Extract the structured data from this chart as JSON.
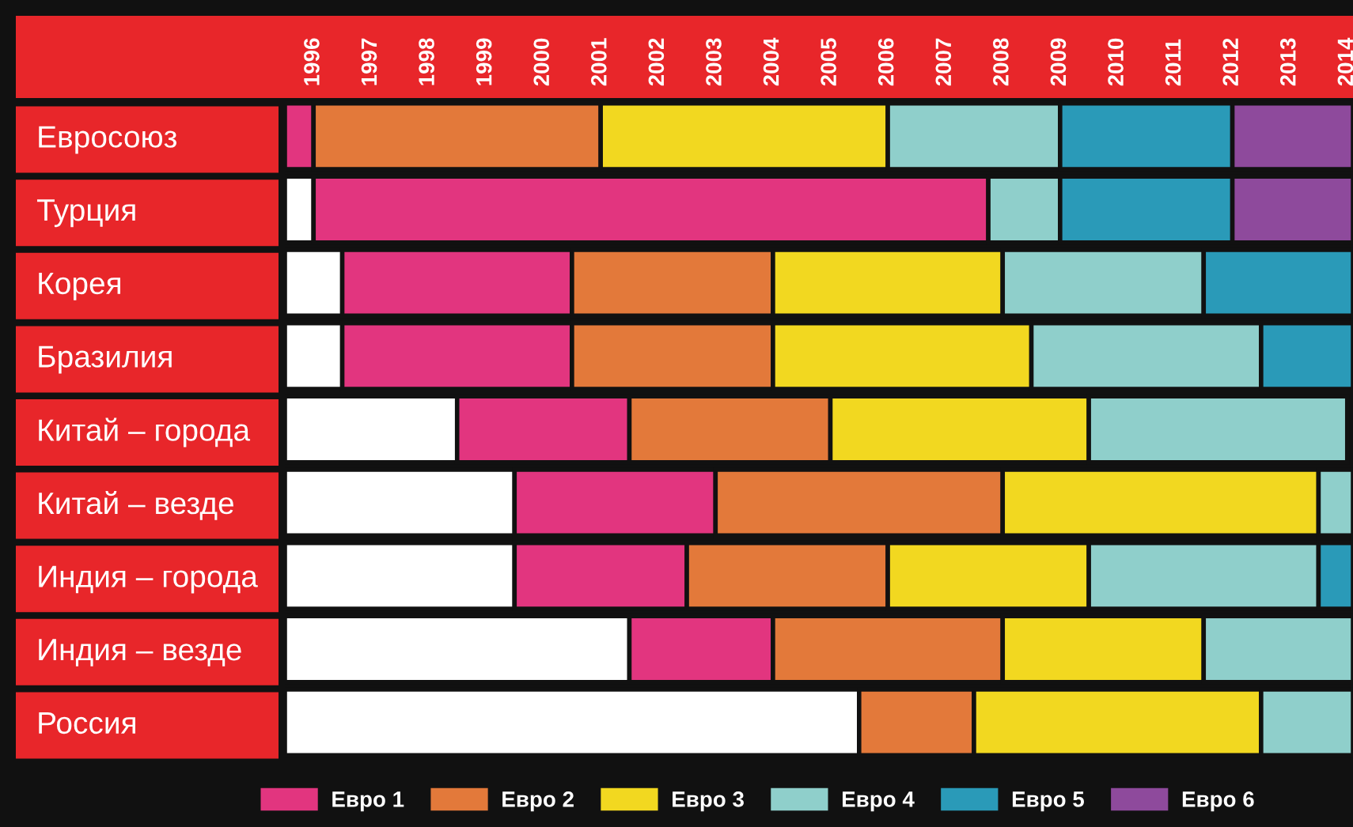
{
  "chart_data": {
    "type": "bar",
    "orientation": "horizontal",
    "categories": [
      "Евросоюз",
      "Турция",
      "Корея",
      "Бразилия",
      "Китай – города",
      "Китай – везде",
      "Индия – города",
      "Индия – везде",
      "Россия"
    ],
    "series": [
      {
        "color": "#ffffff",
        "base": [
          null,
          1996,
          1996,
          1996,
          1996,
          1996,
          1996,
          1996,
          1996
        ],
        "values": [
          null,
          0.5,
          1,
          1,
          3,
          4,
          4,
          6,
          10
        ]
      },
      {
        "name": "Евро 1",
        "color": "#e2357f",
        "base": [
          1996,
          1996.5,
          1997,
          1997,
          1999,
          2000,
          2000,
          2002,
          null
        ],
        "values": [
          0.5,
          11.75,
          4,
          4,
          3,
          3.5,
          3,
          2.5,
          null
        ]
      },
      {
        "name": "Евро 2",
        "color": "#e3793a",
        "base": [
          1996.5,
          null,
          2001,
          2001,
          2002,
          2003.5,
          2003,
          2004.5,
          2006
        ],
        "values": [
          5,
          null,
          3.5,
          3.5,
          3.5,
          5,
          3.5,
          4,
          2
        ]
      },
      {
        "name": "Евро 3",
        "color": "#f2d820",
        "base": [
          2001.5,
          null,
          2004.5,
          2004.5,
          2005.5,
          2008.5,
          2006.5,
          2008.5,
          2008
        ],
        "values": [
          5,
          null,
          4,
          4.5,
          4.5,
          5.5,
          3.5,
          3.5,
          5
        ]
      },
      {
        "name": "Евро 4",
        "color": "#8fcfcb",
        "base": [
          2006.5,
          2008.25,
          2008.5,
          2009,
          2010,
          2014,
          2010,
          2012,
          2013
        ],
        "values": [
          3,
          1.25,
          3.5,
          4,
          4.5,
          0.6,
          4,
          2.6,
          1.6
        ]
      },
      {
        "name": "Евро 5",
        "color": "#2a9ab8",
        "base": [
          2009.5,
          2009.5,
          2012,
          2013,
          null,
          null,
          2014,
          null,
          null
        ],
        "values": [
          3,
          3,
          2.6,
          1.6,
          null,
          null,
          0.6,
          null,
          null
        ]
      },
      {
        "name": "Евро 6",
        "color": "#8e4a9c",
        "base": [
          2012.5,
          2012.5,
          null,
          null,
          null,
          null,
          null,
          null,
          null
        ],
        "values": [
          2.1,
          2.1,
          null,
          null,
          null,
          null,
          null,
          null,
          null
        ]
      }
    ],
    "xlim": [
      1996,
      2014.6
    ],
    "xticks": [
      {
        "value": 1996.5,
        "label": "1996"
      },
      {
        "value": 1997.5,
        "label": "1997"
      },
      {
        "value": 1998.5,
        "label": "1998"
      },
      {
        "value": 1999.5,
        "label": "1999"
      },
      {
        "value": 2000.5,
        "label": "2000"
      },
      {
        "value": 2001.5,
        "label": "2001"
      },
      {
        "value": 2002.5,
        "label": "2002"
      },
      {
        "value": 2003.5,
        "label": "2003"
      },
      {
        "value": 2004.5,
        "label": "2004"
      },
      {
        "value": 2005.5,
        "label": "2005"
      },
      {
        "value": 2006.5,
        "label": "2006"
      },
      {
        "value": 2007.5,
        "label": "2007"
      },
      {
        "value": 2008.5,
        "label": "2008"
      },
      {
        "value": 2009.5,
        "label": "2009"
      },
      {
        "value": 2010.5,
        "label": "2010"
      },
      {
        "value": 2011.5,
        "label": "2011"
      },
      {
        "value": 2012.5,
        "label": "2012"
      },
      {
        "value": 2013.5,
        "label": "2013"
      },
      {
        "value": 2014.5,
        "label": "2014"
      }
    ],
    "grid": false,
    "legend": "bottom"
  }
}
